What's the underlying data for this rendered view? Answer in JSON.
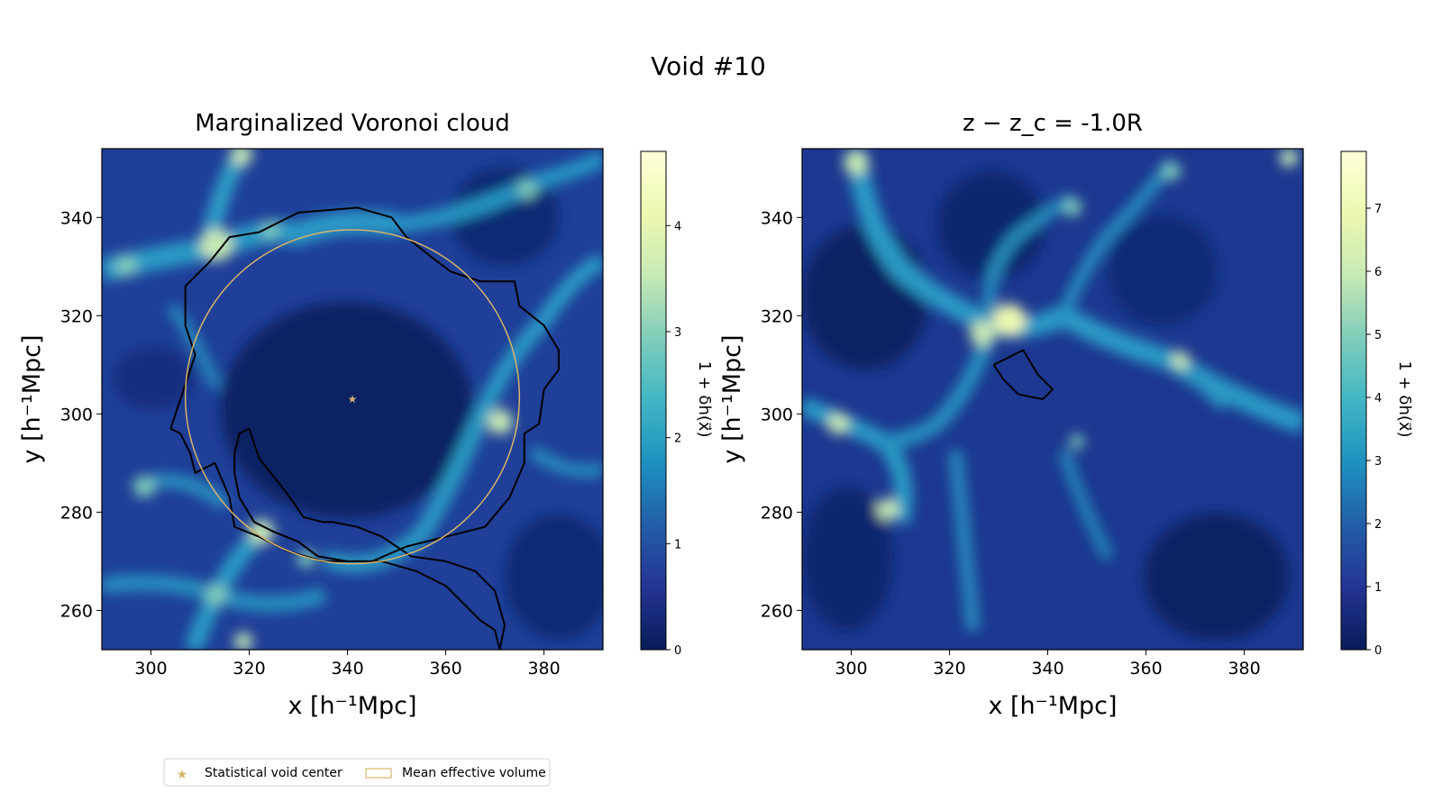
{
  "figure": {
    "suptitle": "Void #10"
  },
  "colors": {
    "void_marker": "#d8b36a",
    "contour": "#000000",
    "colormap": [
      "#081d58",
      "#253494",
      "#225ea8",
      "#1d91c0",
      "#41b6c4",
      "#7fcdbb",
      "#c7e9b4",
      "#edf8b1",
      "#ffffd9"
    ]
  },
  "chart_data": [
    {
      "type": "heatmap",
      "title": "Marginalized Voronoi cloud",
      "xlabel": "x [h⁻¹Mpc]",
      "ylabel": "y [h⁻¹Mpc]",
      "xlim": [
        290,
        392
      ],
      "ylim": [
        252,
        354
      ],
      "xticks": [
        300,
        320,
        340,
        360,
        380
      ],
      "yticks": [
        260,
        280,
        300,
        320,
        340
      ],
      "colorbar": {
        "label": "1 + δh(x⃗)",
        "range": [
          0,
          4.7
        ],
        "ticks": [
          0,
          1,
          2,
          3,
          4
        ]
      },
      "void_center": {
        "x": 341,
        "y": 303
      },
      "mean_effective_volume_circle": {
        "cx": 341,
        "cy": 303.5,
        "r": 34
      },
      "contours": [
        [
          [
            304,
            297
          ],
          [
            307,
            306
          ],
          [
            309,
            312
          ],
          [
            307,
            318
          ],
          [
            307,
            326
          ],
          [
            312,
            331
          ],
          [
            316,
            336
          ],
          [
            322,
            337
          ],
          [
            330,
            341
          ],
          [
            342,
            342
          ],
          [
            349,
            340
          ],
          [
            352,
            336
          ],
          [
            357,
            332
          ],
          [
            361,
            329
          ],
          [
            367,
            327
          ],
          [
            374,
            327
          ],
          [
            375,
            322
          ],
          [
            380,
            318
          ],
          [
            383,
            313
          ],
          [
            383,
            309
          ],
          [
            380,
            305
          ],
          [
            379,
            298
          ],
          [
            376,
            296
          ],
          [
            376,
            290
          ],
          [
            373,
            283
          ],
          [
            368,
            277
          ],
          [
            360,
            275
          ],
          [
            352,
            273
          ],
          [
            345,
            270
          ],
          [
            335,
            270
          ],
          [
            328,
            272
          ],
          [
            322,
            275
          ],
          [
            317,
            277
          ],
          [
            316,
            283
          ],
          [
            313,
            290
          ],
          [
            309,
            288
          ],
          [
            308,
            292
          ],
          [
            306,
            296
          ],
          [
            304,
            297
          ]
        ],
        [
          [
            320,
            297
          ],
          [
            322,
            291
          ],
          [
            326,
            286
          ],
          [
            329,
            282
          ],
          [
            331,
            279
          ],
          [
            335,
            278
          ],
          [
            337,
            278
          ],
          [
            342,
            277
          ],
          [
            347,
            275
          ],
          [
            353,
            271
          ],
          [
            360,
            270
          ],
          [
            366,
            268
          ],
          [
            370,
            264
          ],
          [
            372,
            257
          ],
          [
            371,
            252
          ],
          [
            370,
            256
          ],
          [
            367,
            258
          ],
          [
            364,
            261
          ],
          [
            360,
            265
          ],
          [
            354,
            268
          ],
          [
            347,
            270
          ],
          [
            340,
            270
          ],
          [
            334,
            271
          ],
          [
            330,
            274
          ],
          [
            325,
            276
          ],
          [
            321,
            278
          ],
          [
            318,
            283
          ],
          [
            317,
            288
          ],
          [
            317,
            292
          ],
          [
            318,
            296
          ],
          [
            320,
            297
          ]
        ]
      ]
    },
    {
      "type": "heatmap",
      "title": "z − z_c = -1.0R",
      "xlabel": "x [h⁻¹Mpc]",
      "ylabel": "y [h⁻¹Mpc]",
      "xlim": [
        290,
        392
      ],
      "ylim": [
        252,
        354
      ],
      "xticks": [
        300,
        320,
        340,
        360,
        380
      ],
      "yticks": [
        260,
        280,
        300,
        320,
        340
      ],
      "colorbar": {
        "label": "1 + δh(x⃗)",
        "range": [
          0,
          7.9
        ],
        "ticks": [
          0,
          1,
          2,
          3,
          4,
          5,
          6,
          7
        ]
      },
      "contours": [
        [
          [
            329,
            310
          ],
          [
            335,
            313
          ],
          [
            338,
            308
          ],
          [
            341,
            305
          ],
          [
            339,
            303
          ],
          [
            334,
            304
          ],
          [
            331,
            307
          ],
          [
            329,
            310
          ]
        ]
      ]
    }
  ],
  "legend": {
    "items": [
      {
        "label": "Statistical void center",
        "marker": "star"
      },
      {
        "label": "Mean effective volume",
        "marker": "rect-outline"
      }
    ]
  }
}
